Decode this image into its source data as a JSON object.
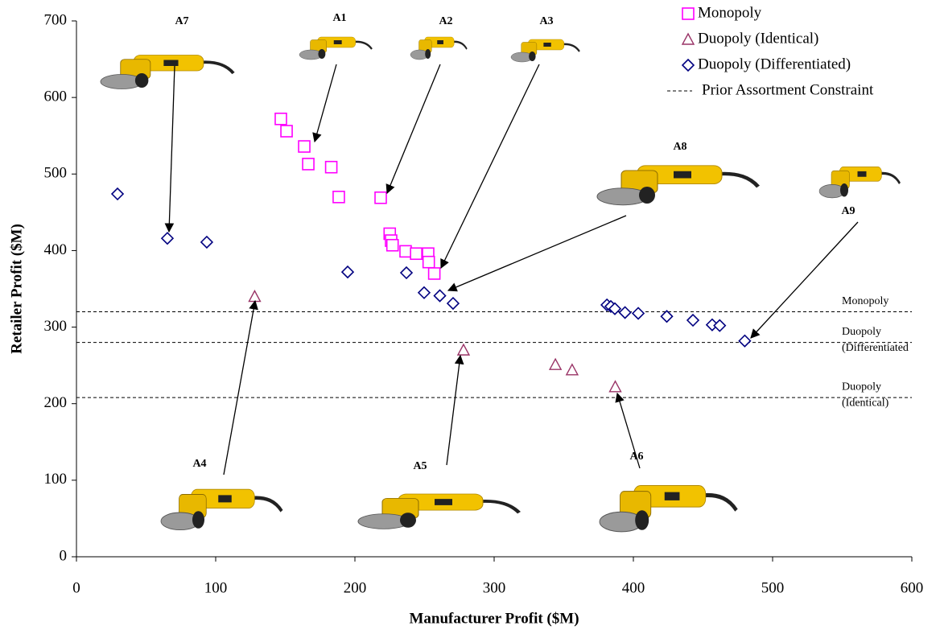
{
  "chart_data": {
    "type": "scatter",
    "x_label": "Manufacturer Profit ($M)",
    "y_label": "Retailer Profit ($M)",
    "xlim": [
      0,
      600
    ],
    "xticks": [
      0,
      100,
      200,
      300,
      400,
      500,
      600
    ],
    "ylim": [
      0,
      700
    ],
    "yticks": [
      0,
      100,
      200,
      300,
      400,
      500,
      600,
      700
    ],
    "grid": false,
    "legend": "upper right",
    "series": [
      {
        "name": "Monopoly",
        "marker": "square",
        "color": "#ff00ff",
        "x": [
          146.8,
          150.9,
          163.6,
          166.5,
          183,
          188.4,
          218.5,
          225,
          226,
          227,
          236.4,
          244,
          252.6,
          253,
          257
        ],
        "values": [
          572,
          556,
          536,
          513,
          509,
          470,
          469,
          422,
          413,
          407,
          399,
          396,
          396,
          385,
          370
        ]
      },
      {
        "name": "Duopoly (Identical)",
        "marker": "triangle",
        "color": "#993366",
        "x": [
          128,
          278,
          344,
          356,
          387
        ],
        "values": [
          340,
          270,
          251,
          244,
          222
        ]
      },
      {
        "name": "Duopoly (Differentiated)",
        "marker": "diamond",
        "color": "#000080",
        "x": [
          29.5,
          65.3,
          93.6,
          194.8,
          237,
          249.7,
          261,
          270.5,
          381,
          383.8,
          386.7,
          394,
          403.5,
          424,
          442.8,
          456.6,
          462,
          480
        ],
        "values": [
          474,
          416,
          411,
          372,
          371,
          345,
          341,
          331,
          329,
          327,
          324,
          319,
          318,
          314,
          309,
          303,
          302,
          282
        ]
      }
    ],
    "reference_line_legend": "Prior Assortment Constraint",
    "reference_lines": [
      {
        "label": [
          "Monopoly"
        ],
        "value": 320
      },
      {
        "label": [
          "Duopoly",
          "(Differentiated"
        ],
        "value": 280
      },
      {
        "label": [
          "Duopoly",
          "(Identical)"
        ],
        "value": 208
      }
    ],
    "annotations": [
      "A7",
      "A1",
      "A2",
      "A3",
      "A8",
      "A9",
      "A4",
      "A5",
      "A6"
    ]
  }
}
